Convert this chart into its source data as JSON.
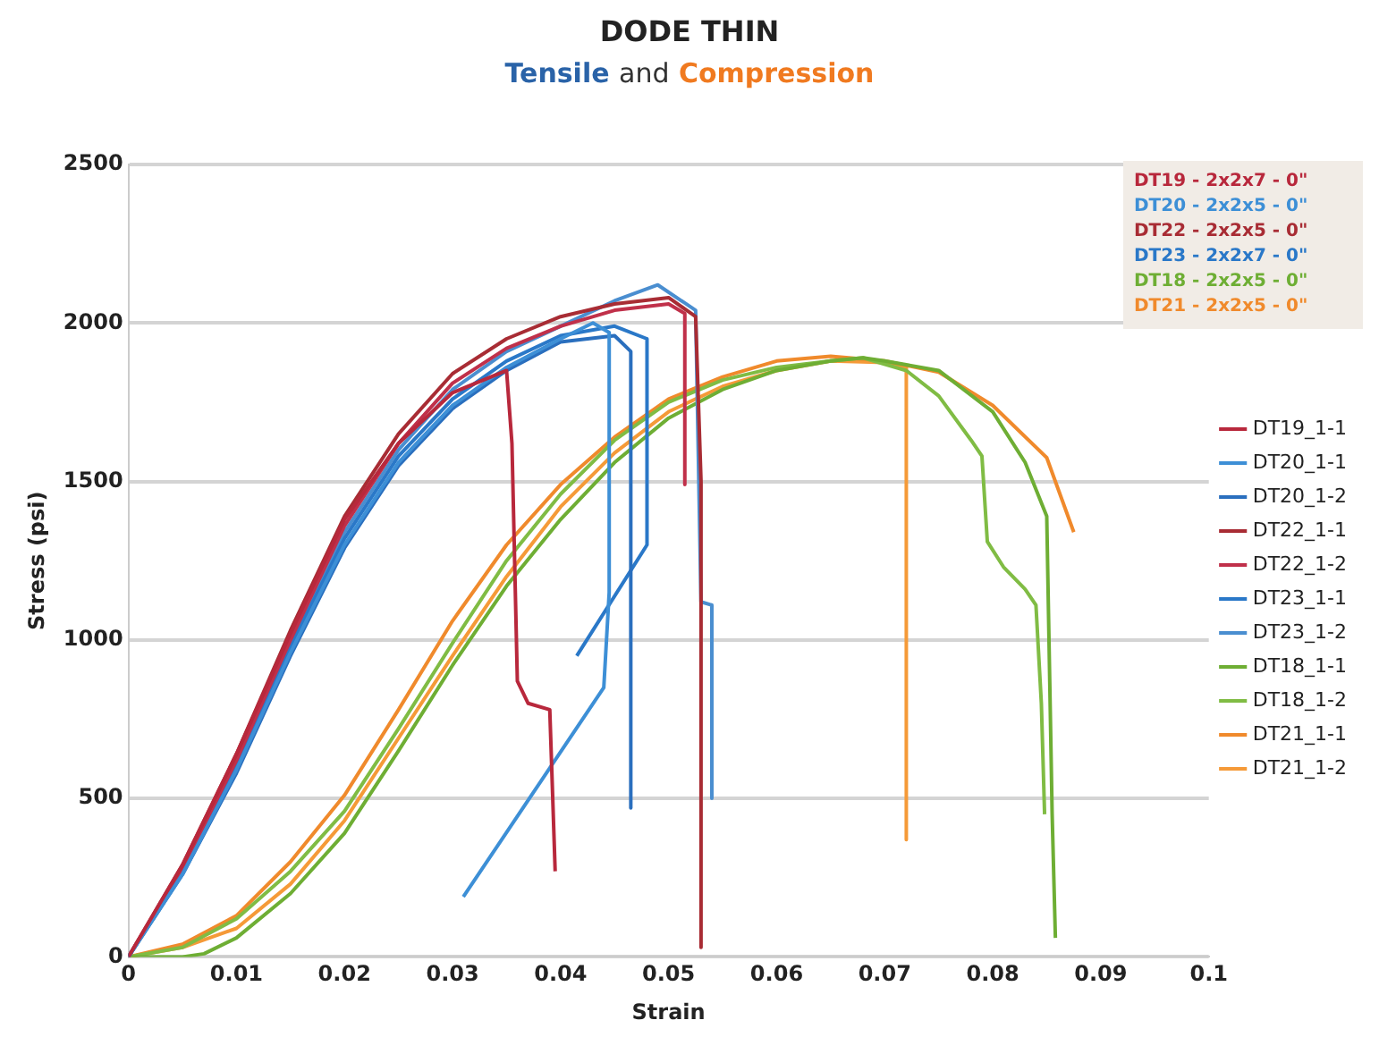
{
  "chart_data": {
    "type": "line",
    "title": "DODE THIN",
    "subtitle": "Tensile and Compression",
    "xlabel": "Strain",
    "ylabel": "Stress (psi)",
    "annotations": [
      "DT19 - 2x2x7 - 0\"",
      "DT20 - 2x2x5 - 0\"",
      "DT22 - 2x2x5 - 0\"",
      "DT23 - 2x2x7 - 0\"",
      "DT18 - 2x2x5 - 0\"",
      "DT21 - 2x2x5 - 0\""
    ],
    "xlim": [
      0,
      0.1
    ],
    "xticks": [
      0,
      0.01,
      0.02,
      0.03,
      0.04,
      0.05,
      0.06,
      0.07,
      0.08,
      0.09,
      0.1
    ],
    "ylim": [
      0,
      2500
    ],
    "yticks": [
      0,
      500,
      1000,
      1500,
      2000,
      2500
    ],
    "grid": "y",
    "legend": "right",
    "series": [
      {
        "name": "DT19_1-1",
        "color": "#b8283c",
        "x": [
          0,
          0.005,
          0.01,
          0.015,
          0.02,
          0.025,
          0.03,
          0.035,
          0.0355,
          0.036,
          0.037,
          0.039,
          0.0395
        ],
        "values": [
          0,
          290,
          640,
          1020,
          1380,
          1620,
          1780,
          1850,
          1620,
          870,
          800,
          780,
          270
        ]
      },
      {
        "name": "DT20_1-1",
        "color": "#3d8fd6",
        "x": [
          0,
          0.005,
          0.01,
          0.015,
          0.02,
          0.025,
          0.03,
          0.035,
          0.04,
          0.043,
          0.0445,
          0.0445,
          0.044,
          0.031
        ],
        "values": [
          0,
          260,
          590,
          960,
          1300,
          1560,
          1740,
          1860,
          1950,
          2000,
          1970,
          1150,
          850,
          190
        ]
      },
      {
        "name": "DT20_1-2",
        "color": "#2a6fbe",
        "x": [
          0,
          0.005,
          0.01,
          0.015,
          0.02,
          0.025,
          0.03,
          0.035,
          0.04,
          0.045,
          0.0465,
          0.0465
        ],
        "values": [
          0,
          260,
          580,
          950,
          1290,
          1550,
          1730,
          1850,
          1940,
          1960,
          1910,
          470
        ]
      },
      {
        "name": "DT22_1-1",
        "color": "#a82c34",
        "x": [
          0,
          0.005,
          0.01,
          0.015,
          0.02,
          0.025,
          0.03,
          0.035,
          0.04,
          0.045,
          0.05,
          0.0525,
          0.053,
          0.053
        ],
        "values": [
          0,
          290,
          640,
          1030,
          1390,
          1650,
          1840,
          1950,
          2020,
          2060,
          2080,
          2020,
          1500,
          30
        ]
      },
      {
        "name": "DT22_1-2",
        "color": "#c0304a",
        "x": [
          0,
          0.005,
          0.01,
          0.015,
          0.02,
          0.025,
          0.03,
          0.035,
          0.04,
          0.045,
          0.05,
          0.0515,
          0.0515
        ],
        "values": [
          0,
          280,
          620,
          1000,
          1360,
          1620,
          1810,
          1920,
          1990,
          2040,
          2060,
          2030,
          1490
        ]
      },
      {
        "name": "DT23_1-1",
        "color": "#2a78c8",
        "x": [
          0,
          0.005,
          0.01,
          0.015,
          0.02,
          0.025,
          0.03,
          0.035,
          0.04,
          0.045,
          0.048,
          0.048,
          0.0415
        ],
        "values": [
          0,
          270,
          600,
          980,
          1320,
          1580,
          1760,
          1880,
          1960,
          1990,
          1950,
          1300,
          950
        ]
      },
      {
        "name": "DT23_1-2",
        "color": "#4a8ed0",
        "x": [
          0,
          0.005,
          0.01,
          0.015,
          0.02,
          0.025,
          0.03,
          0.035,
          0.04,
          0.045,
          0.049,
          0.0525,
          0.053,
          0.054,
          0.054
        ],
        "values": [
          0,
          270,
          610,
          990,
          1340,
          1600,
          1790,
          1910,
          1990,
          2070,
          2120,
          2040,
          1120,
          1110,
          500
        ]
      },
      {
        "name": "DT18_1-1",
        "color": "#6eae34",
        "x": [
          0,
          0.005,
          0.007,
          0.01,
          0.015,
          0.02,
          0.025,
          0.03,
          0.035,
          0.04,
          0.045,
          0.05,
          0.055,
          0.06,
          0.065,
          0.068,
          0.07,
          0.075,
          0.08,
          0.083,
          0.085,
          0.0855,
          0.0858
        ],
        "values": [
          0,
          0,
          10,
          60,
          200,
          390,
          650,
          920,
          1170,
          1380,
          1560,
          1700,
          1790,
          1850,
          1880,
          1890,
          1880,
          1850,
          1720,
          1560,
          1390,
          450,
          60
        ]
      },
      {
        "name": "DT18_1-2",
        "color": "#80bc44",
        "x": [
          0,
          0.005,
          0.01,
          0.015,
          0.02,
          0.025,
          0.03,
          0.035,
          0.04,
          0.045,
          0.05,
          0.055,
          0.06,
          0.065,
          0.068,
          0.072,
          0.075,
          0.078,
          0.079,
          0.0795,
          0.081,
          0.083,
          0.084,
          0.0845,
          0.0848
        ],
        "values": [
          0,
          30,
          120,
          270,
          460,
          720,
          990,
          1250,
          1460,
          1630,
          1750,
          1820,
          1860,
          1880,
          1890,
          1850,
          1770,
          1630,
          1580,
          1310,
          1230,
          1160,
          1110,
          800,
          450
        ]
      },
      {
        "name": "DT21_1-1",
        "color": "#f08a2c",
        "x": [
          0,
          0.005,
          0.01,
          0.015,
          0.02,
          0.025,
          0.03,
          0.035,
          0.04,
          0.045,
          0.05,
          0.055,
          0.06,
          0.065,
          0.07,
          0.075,
          0.08,
          0.085,
          0.0875
        ],
        "values": [
          0,
          40,
          130,
          300,
          510,
          780,
          1060,
          1300,
          1490,
          1640,
          1760,
          1830,
          1880,
          1895,
          1880,
          1845,
          1740,
          1575,
          1340
        ]
      },
      {
        "name": "DT21_1-2",
        "color": "#f59a38",
        "x": [
          0,
          0.005,
          0.01,
          0.015,
          0.02,
          0.025,
          0.03,
          0.035,
          0.04,
          0.045,
          0.05,
          0.055,
          0.06,
          0.065,
          0.07,
          0.072,
          0.072
        ],
        "values": [
          0,
          30,
          90,
          230,
          430,
          690,
          950,
          1200,
          1420,
          1590,
          1720,
          1800,
          1850,
          1880,
          1875,
          1860,
          370
        ]
      }
    ]
  }
}
